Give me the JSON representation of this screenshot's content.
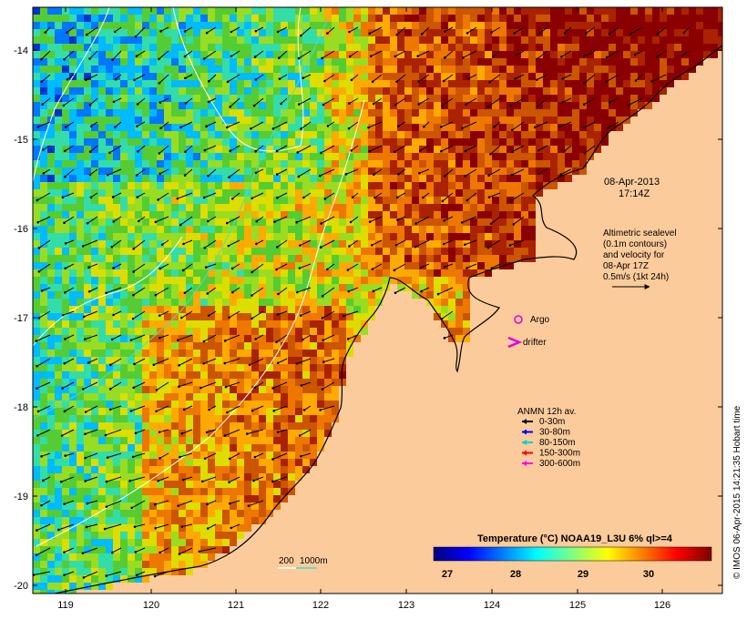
{
  "timestamp": {
    "date": "08-Apr-2013",
    "time": "17:14Z"
  },
  "altimetry_note": [
    "Altimetric sealevel",
    "(0.1m contours)",
    "and velocity for",
    "08-Apr 17Z",
    "0.5m/s (1kt 24h)"
  ],
  "markers": {
    "argo": "Argo",
    "drifter": "drifter"
  },
  "anmn_legend": {
    "title": "ANMN 12h av.",
    "items": [
      {
        "label": "0-30m",
        "color": "#000000"
      },
      {
        "label": "30-80m",
        "color": "#0000ff"
      },
      {
        "label": "80-150m",
        "color": "#00d0d0"
      },
      {
        "label": "150-300m",
        "color": "#ff0000"
      },
      {
        "label": "300-600m",
        "color": "#ff00ff"
      }
    ]
  },
  "colorbar": {
    "title": "Temperature (°C) NOAA19_L3U 6% ql>=4",
    "ticks": [
      "27",
      "28",
      "29",
      "30"
    ],
    "colors": [
      "#00007f",
      "#0000ff",
      "#007fff",
      "#00ffff",
      "#7fff7f",
      "#ffff00",
      "#ff7f00",
      "#ff0000",
      "#7f0000"
    ]
  },
  "isobath_label": {
    "shallow": "200",
    "deep": "1000m"
  },
  "credit": "© IMOS 06-Apr-2015 14:21:35 Hobart time",
  "axes": {
    "lon_ticks": [
      "119",
      "120",
      "121",
      "122",
      "123",
      "124",
      "125",
      "126"
    ],
    "lat_ticks": [
      "-14",
      "-15",
      "-16",
      "-17",
      "-18",
      "-19",
      "-20"
    ]
  },
  "colors": {
    "land": "#fccb9b",
    "coast": "#000000",
    "isobath_200": "#ffffff",
    "isobath_1000": "#40e0d0",
    "marker": "#e000e0"
  }
}
